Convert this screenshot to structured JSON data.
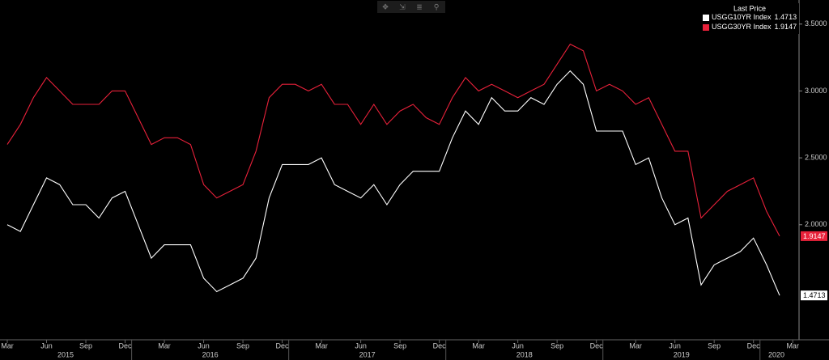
{
  "chart_data": {
    "type": "line",
    "legend_title": "Last Price",
    "x": [
      "2015-03",
      "2015-04",
      "2015-05",
      "2015-06",
      "2015-07",
      "2015-08",
      "2015-09",
      "2015-10",
      "2015-11",
      "2015-12",
      "2016-01",
      "2016-02",
      "2016-03",
      "2016-04",
      "2016-05",
      "2016-06",
      "2016-07",
      "2016-08",
      "2016-09",
      "2016-10",
      "2016-11",
      "2016-12",
      "2017-01",
      "2017-02",
      "2017-03",
      "2017-04",
      "2017-05",
      "2017-06",
      "2017-07",
      "2017-08",
      "2017-09",
      "2017-10",
      "2017-11",
      "2017-12",
      "2018-01",
      "2018-02",
      "2018-03",
      "2018-04",
      "2018-05",
      "2018-06",
      "2018-07",
      "2018-08",
      "2018-09",
      "2018-10",
      "2018-11",
      "2018-12",
      "2019-01",
      "2019-02",
      "2019-03",
      "2019-04",
      "2019-05",
      "2019-06",
      "2019-07",
      "2019-08",
      "2019-09",
      "2019-10",
      "2019-11",
      "2019-12",
      "2020-01",
      "2020-02"
    ],
    "series": [
      {
        "name": "USGG10YR Index",
        "color": "#ffffff",
        "values": [
          2.0,
          1.95,
          2.15,
          2.35,
          2.3,
          2.15,
          2.15,
          2.05,
          2.2,
          2.25,
          2.0,
          1.75,
          1.85,
          1.85,
          1.85,
          1.6,
          1.5,
          1.55,
          1.6,
          1.75,
          2.2,
          2.45,
          2.45,
          2.45,
          2.5,
          2.3,
          2.25,
          2.2,
          2.3,
          2.15,
          2.3,
          2.4,
          2.4,
          2.4,
          2.65,
          2.85,
          2.75,
          2.95,
          2.85,
          2.85,
          2.95,
          2.9,
          3.05,
          3.15,
          3.05,
          2.7,
          2.7,
          2.7,
          2.45,
          2.5,
          2.2,
          2.0,
          2.05,
          1.55,
          1.7,
          1.75,
          1.8,
          1.9,
          1.7,
          1.4713
        ]
      },
      {
        "name": "USGG30YR Index",
        "color": "#e8213a",
        "values": [
          2.6,
          2.75,
          2.95,
          3.1,
          3.0,
          2.9,
          2.9,
          2.9,
          3.0,
          3.0,
          2.8,
          2.6,
          2.65,
          2.65,
          2.6,
          2.3,
          2.2,
          2.25,
          2.3,
          2.55,
          2.95,
          3.05,
          3.05,
          3.0,
          3.05,
          2.9,
          2.9,
          2.75,
          2.9,
          2.75,
          2.85,
          2.9,
          2.8,
          2.75,
          2.95,
          3.1,
          3.0,
          3.05,
          3.0,
          2.95,
          3.0,
          3.05,
          3.2,
          3.35,
          3.3,
          3.0,
          3.05,
          3.0,
          2.9,
          2.95,
          2.75,
          2.55,
          2.55,
          2.05,
          2.15,
          2.25,
          2.3,
          2.35,
          2.1,
          1.9147
        ]
      }
    ],
    "ylim": [
      1.14,
      3.68
    ],
    "yticks": [
      {
        "value": 2.0,
        "label": "2.0000"
      },
      {
        "value": 2.5,
        "label": "2.5000"
      },
      {
        "value": 3.0,
        "label": "3.0000"
      },
      {
        "value": 3.5,
        "label": "3.5000"
      }
    ],
    "xticks": [
      {
        "value": "2015-03",
        "label": "Mar"
      },
      {
        "value": "2015-06",
        "label": "Jun"
      },
      {
        "value": "2015-09",
        "label": "Sep"
      },
      {
        "value": "2015-12",
        "label": "Dec"
      },
      {
        "value": "2016-03",
        "label": "Mar"
      },
      {
        "value": "2016-06",
        "label": "Jun"
      },
      {
        "value": "2016-09",
        "label": "Sep"
      },
      {
        "value": "2016-12",
        "label": "Dec"
      },
      {
        "value": "2017-03",
        "label": "Mar"
      },
      {
        "value": "2017-06",
        "label": "Jun"
      },
      {
        "value": "2017-09",
        "label": "Sep"
      },
      {
        "value": "2017-12",
        "label": "Dec"
      },
      {
        "value": "2018-03",
        "label": "Mar"
      },
      {
        "value": "2018-06",
        "label": "Jun"
      },
      {
        "value": "2018-09",
        "label": "Sep"
      },
      {
        "value": "2018-12",
        "label": "Dec"
      },
      {
        "value": "2019-03",
        "label": "Mar"
      },
      {
        "value": "2019-06",
        "label": "Jun"
      },
      {
        "value": "2019-09",
        "label": "Sep"
      },
      {
        "value": "2019-12",
        "label": "Dec"
      },
      {
        "value": "2020-03",
        "label": "Mar"
      }
    ],
    "years": [
      2015,
      2016,
      2017,
      2018,
      2019,
      2020
    ]
  }
}
